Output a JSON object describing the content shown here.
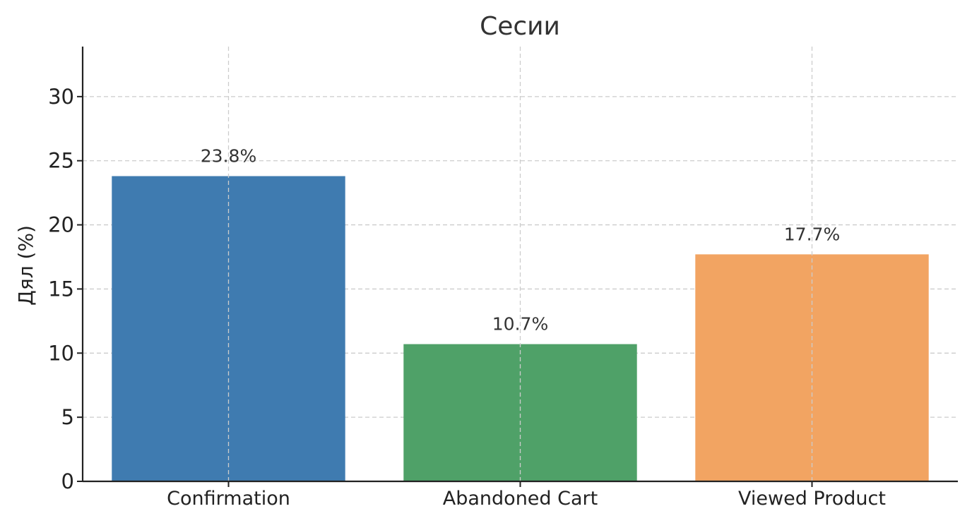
{
  "chart_data": {
    "type": "bar",
    "title": "Сесии",
    "xlabel": "",
    "ylabel": "Дял (%)",
    "categories": [
      "Confirmation",
      "Abandoned Cart",
      "Viewed Product"
    ],
    "values": [
      23.8,
      10.7,
      17.7
    ],
    "data_labels": [
      "23.8%",
      "10.7%",
      "17.7%"
    ],
    "colors": [
      "#3f7bb0",
      "#4fa168",
      "#f2a462"
    ],
    "ylim": [
      0,
      33.9
    ],
    "yticks": [
      0,
      5,
      10,
      15,
      20,
      25,
      30
    ],
    "grid": true,
    "legend": "none"
  }
}
